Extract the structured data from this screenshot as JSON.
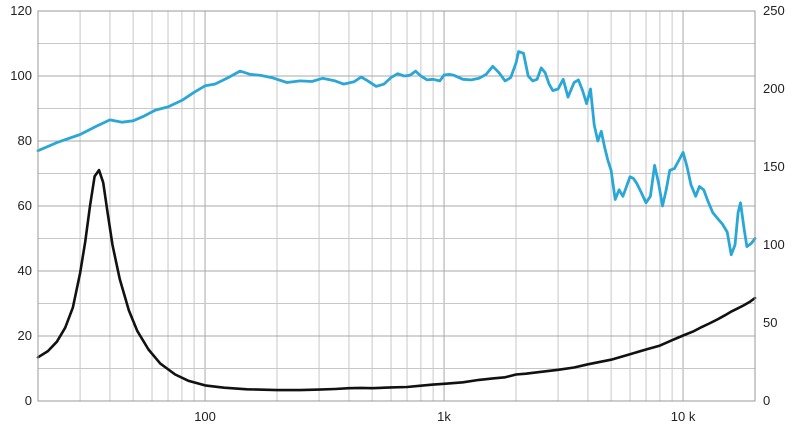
{
  "chart_data": {
    "type": "line",
    "title": "",
    "xlabel": "",
    "ylabel": "",
    "y2label": "",
    "x_scale": "log",
    "xlim": [
      20,
      20000
    ],
    "ylim": [
      0,
      120
    ],
    "y2lim": [
      0,
      250
    ],
    "x_tick_labels": [
      {
        "value": 100,
        "label": "100"
      },
      {
        "value": 1000,
        "label": "1k"
      },
      {
        "value": 10000,
        "label": "10 k"
      }
    ],
    "y_ticks": [
      0,
      20,
      40,
      60,
      80,
      100,
      120
    ],
    "y2_ticks": [
      0,
      50,
      100,
      150,
      200,
      250
    ],
    "grid": true,
    "series": [
      {
        "name": "",
        "axis": "left",
        "color": "#2aa7d6",
        "points": [
          [
            20,
            77
          ],
          [
            24,
            79.5
          ],
          [
            30,
            82
          ],
          [
            35,
            84.5
          ],
          [
            40,
            86.5
          ],
          [
            45,
            85.8
          ],
          [
            50,
            86.2
          ],
          [
            55,
            87.5
          ],
          [
            62,
            89.5
          ],
          [
            70,
            90.5
          ],
          [
            80,
            92.5
          ],
          [
            90,
            95
          ],
          [
            100,
            97
          ],
          [
            110,
            97.5
          ],
          [
            125,
            99.5
          ],
          [
            140,
            101.5
          ],
          [
            155,
            100.5
          ],
          [
            170,
            100.2
          ],
          [
            190,
            99.5
          ],
          [
            220,
            98
          ],
          [
            250,
            98.5
          ],
          [
            280,
            98.3
          ],
          [
            310,
            99.3
          ],
          [
            350,
            98.5
          ],
          [
            380,
            97.5
          ],
          [
            420,
            98.2
          ],
          [
            450,
            99.7
          ],
          [
            480,
            98.5
          ],
          [
            520,
            96.8
          ],
          [
            560,
            97.5
          ],
          [
            600,
            99.5
          ],
          [
            640,
            100.7
          ],
          [
            680,
            100
          ],
          [
            720,
            100.2
          ],
          [
            760,
            101.5
          ],
          [
            800,
            100
          ],
          [
            850,
            98.8
          ],
          [
            900,
            99
          ],
          [
            960,
            98.5
          ],
          [
            1000,
            100.3
          ],
          [
            1050,
            100.5
          ],
          [
            1100,
            100.2
          ],
          [
            1200,
            99
          ],
          [
            1300,
            98.8
          ],
          [
            1400,
            99.3
          ],
          [
            1500,
            100.5
          ],
          [
            1600,
            103
          ],
          [
            1700,
            101
          ],
          [
            1800,
            98.5
          ],
          [
            1900,
            99.5
          ],
          [
            2000,
            104
          ],
          [
            2050,
            107.5
          ],
          [
            2150,
            107
          ],
          [
            2250,
            100
          ],
          [
            2350,
            98.5
          ],
          [
            2450,
            99
          ],
          [
            2550,
            102.5
          ],
          [
            2650,
            101
          ],
          [
            2750,
            97.5
          ],
          [
            2850,
            95.5
          ],
          [
            3000,
            96
          ],
          [
            3150,
            99
          ],
          [
            3300,
            93.5
          ],
          [
            3500,
            98
          ],
          [
            3650,
            98.8
          ],
          [
            3800,
            95.5
          ],
          [
            3950,
            91.5
          ],
          [
            4100,
            96
          ],
          [
            4250,
            85
          ],
          [
            4400,
            80
          ],
          [
            4550,
            83
          ],
          [
            4700,
            78
          ],
          [
            4850,
            74
          ],
          [
            5000,
            71
          ],
          [
            5200,
            62
          ],
          [
            5400,
            65
          ],
          [
            5600,
            63
          ],
          [
            5800,
            66
          ],
          [
            6000,
            69
          ],
          [
            6200,
            68.5
          ],
          [
            6400,
            67
          ],
          [
            6700,
            64
          ],
          [
            7000,
            61
          ],
          [
            7300,
            63
          ],
          [
            7600,
            72.5
          ],
          [
            7900,
            67
          ],
          [
            8200,
            60
          ],
          [
            8500,
            65
          ],
          [
            8800,
            71
          ],
          [
            9200,
            71.5
          ],
          [
            9600,
            74
          ],
          [
            10000,
            76.5
          ],
          [
            10400,
            72
          ],
          [
            10800,
            66.5
          ],
          [
            11300,
            63
          ],
          [
            11700,
            66
          ],
          [
            12200,
            65
          ],
          [
            12700,
            61.5
          ],
          [
            13300,
            58
          ],
          [
            14000,
            56
          ],
          [
            14600,
            54.5
          ],
          [
            15300,
            52
          ],
          [
            15900,
            45
          ],
          [
            16500,
            48
          ],
          [
            17000,
            58
          ],
          [
            17400,
            61
          ],
          [
            18000,
            53
          ],
          [
            18500,
            47.5
          ],
          [
            19300,
            48.5
          ],
          [
            20000,
            50
          ]
        ]
      },
      {
        "name": "",
        "axis": "right",
        "color": "#111111",
        "points": [
          [
            20,
            28
          ],
          [
            22,
            32
          ],
          [
            24,
            38
          ],
          [
            26,
            47
          ],
          [
            28,
            60
          ],
          [
            30,
            82
          ],
          [
            31.5,
            102
          ],
          [
            33,
            125
          ],
          [
            34.5,
            144
          ],
          [
            36,
            148
          ],
          [
            37.5,
            140
          ],
          [
            39,
            122
          ],
          [
            41,
            100
          ],
          [
            44,
            78
          ],
          [
            48,
            58
          ],
          [
            52,
            45
          ],
          [
            58,
            33
          ],
          [
            65,
            24
          ],
          [
            75,
            17
          ],
          [
            85,
            13
          ],
          [
            100,
            10
          ],
          [
            120,
            8.5
          ],
          [
            150,
            7.5
          ],
          [
            200,
            7
          ],
          [
            250,
            7
          ],
          [
            300,
            7.3
          ],
          [
            350,
            7.7
          ],
          [
            400,
            8.2
          ],
          [
            450,
            8.4
          ],
          [
            500,
            8.2
          ],
          [
            600,
            8.7
          ],
          [
            700,
            9
          ],
          [
            800,
            9.8
          ],
          [
            900,
            10.5
          ],
          [
            1000,
            11
          ],
          [
            1200,
            12
          ],
          [
            1400,
            13.5
          ],
          [
            1600,
            14.5
          ],
          [
            1800,
            15.2
          ],
          [
            2000,
            17
          ],
          [
            2200,
            17.5
          ],
          [
            2500,
            18.5
          ],
          [
            3000,
            20
          ],
          [
            3500,
            21.5
          ],
          [
            4000,
            23.5
          ],
          [
            5000,
            26.5
          ],
          [
            6000,
            30
          ],
          [
            7000,
            33
          ],
          [
            8000,
            35.5
          ],
          [
            9000,
            39
          ],
          [
            10000,
            42
          ],
          [
            11000,
            44.5
          ],
          [
            12000,
            47.5
          ],
          [
            13000,
            50
          ],
          [
            14000,
            52.5
          ],
          [
            15000,
            55
          ],
          [
            16000,
            57.5
          ],
          [
            17000,
            59.5
          ],
          [
            18000,
            61.5
          ],
          [
            19000,
            63.5
          ],
          [
            20000,
            66
          ]
        ]
      }
    ]
  }
}
